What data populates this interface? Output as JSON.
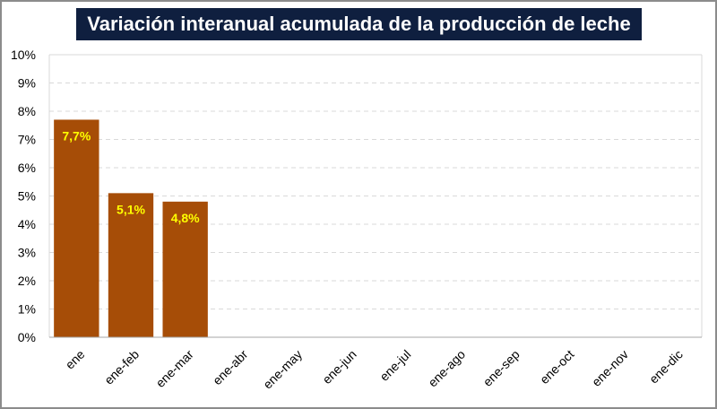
{
  "colors": {
    "bar": "#a64d07",
    "data_label": "#ffff00",
    "title_bg": "#0f1f3f",
    "title_text": "#ffffff",
    "grid": "#d9d9d9"
  },
  "chart_data": {
    "type": "bar",
    "title": "Variación interanual acumulada de la producción de leche",
    "xlabel": "",
    "ylabel": "",
    "categories": [
      "ene",
      "ene-feb",
      "ene-mar",
      "ene-abr",
      "ene-may",
      "ene-jun",
      "ene-jul",
      "ene-ago",
      "ene-sep",
      "ene-oct",
      "ene-nov",
      "ene-dic"
    ],
    "values": [
      7.7,
      5.1,
      4.8,
      null,
      null,
      null,
      null,
      null,
      null,
      null,
      null,
      null
    ],
    "data_labels": [
      "7,7%",
      "5,1%",
      "4,8%",
      "",
      "",
      "",
      "",
      "",
      "",
      "",
      "",
      ""
    ],
    "ylim": [
      0,
      10
    ],
    "y_ticks": [
      "0%",
      "1%",
      "2%",
      "3%",
      "4%",
      "5%",
      "6%",
      "7%",
      "8%",
      "9%",
      "10%"
    ],
    "grid": true,
    "grid_style": "dashed",
    "legend": "none"
  }
}
